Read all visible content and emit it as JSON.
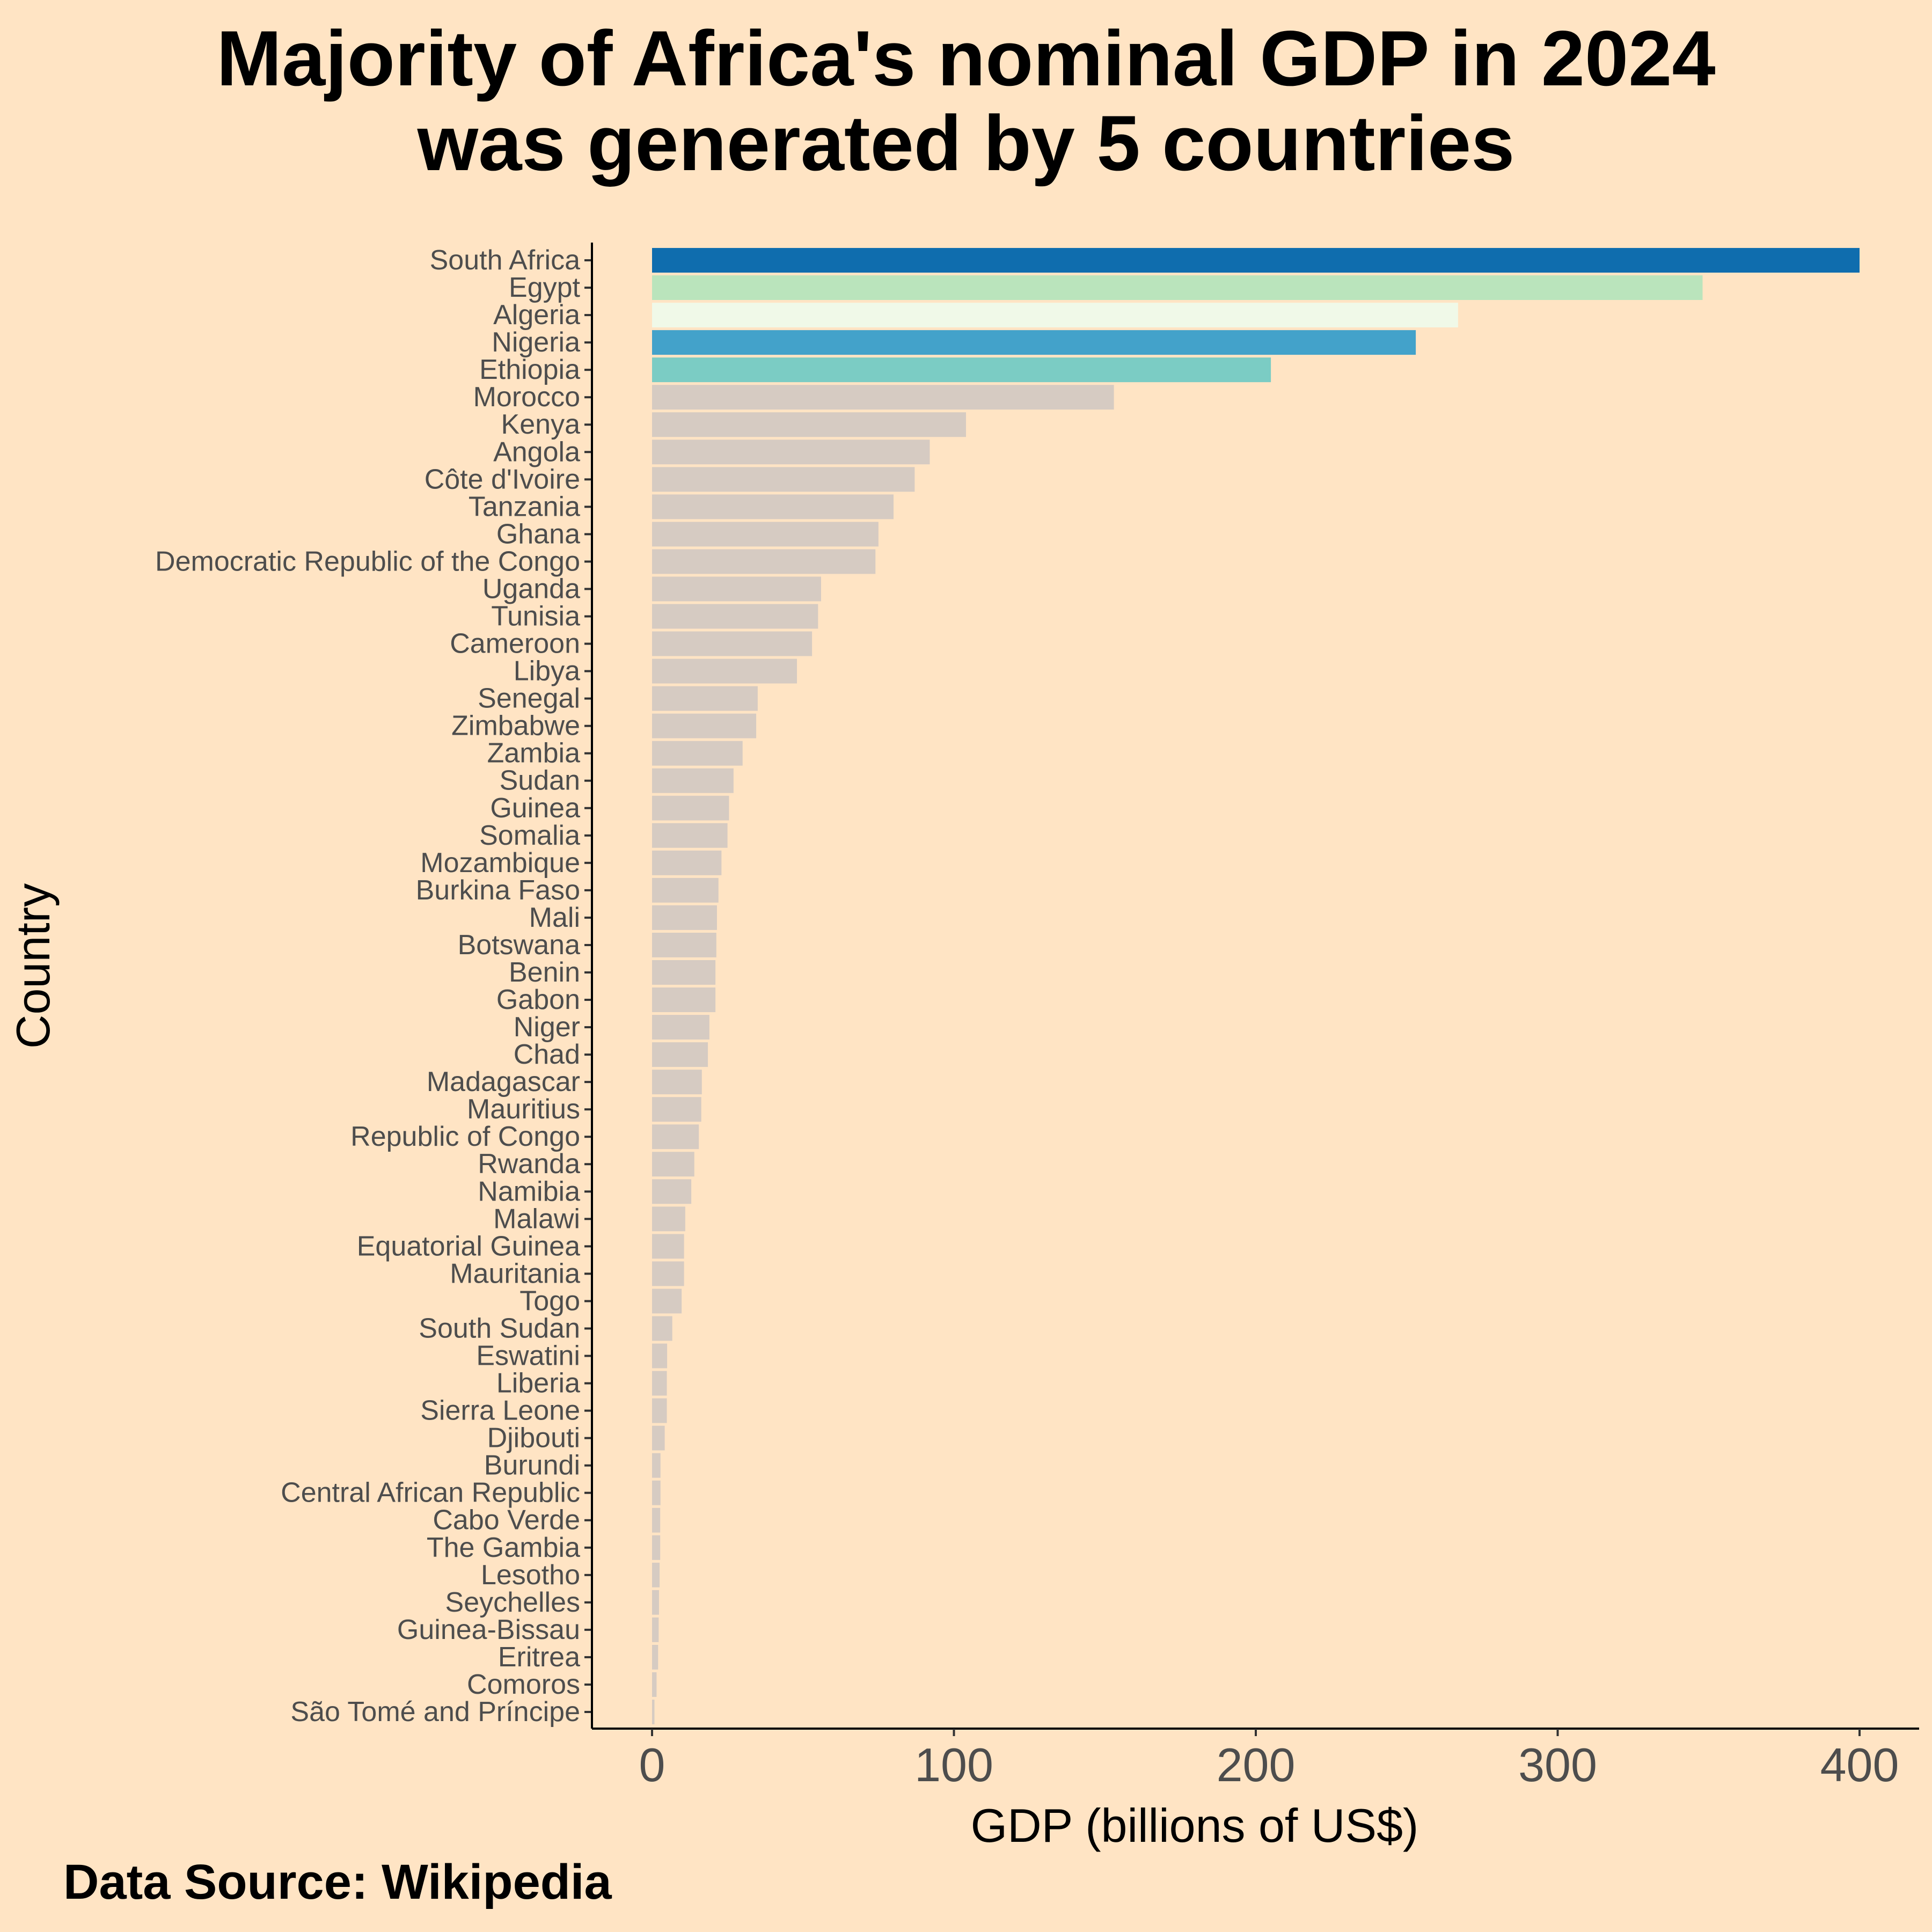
{
  "chart_data": {
    "type": "bar",
    "orientation": "horizontal",
    "title_lines": [
      "Majority of Africa's nominal GDP in 2024",
      "was generated by 5 countries"
    ],
    "xlabel": "GDP (billions of US$)",
    "ylabel": "Country",
    "xlim": [
      -20,
      420
    ],
    "xticks": [
      0,
      100,
      200,
      300,
      400
    ],
    "grid": false,
    "caption": "Data Source: Wikipedia",
    "categories": [
      "South Africa",
      "Egypt",
      "Algeria",
      "Nigeria",
      "Ethiopia",
      "Morocco",
      "Kenya",
      "Angola",
      "Côte d'Ivoire",
      "Tanzania",
      "Ghana",
      "Democratic Republic of the Congo",
      "Uganda",
      "Tunisia",
      "Cameroon",
      "Libya",
      "Senegal",
      "Zimbabwe",
      "Zambia",
      "Sudan",
      "Guinea",
      "Somalia",
      "Mozambique",
      "Burkina Faso",
      "Mali",
      "Botswana",
      "Benin",
      "Gabon",
      "Niger",
      "Chad",
      "Madagascar",
      "Mauritius",
      "Republic of Congo",
      "Rwanda",
      "Namibia",
      "Malawi",
      "Equatorial Guinea",
      "Mauritania",
      "Togo",
      "South Sudan",
      "Eswatini",
      "Liberia",
      "Sierra Leone",
      "Djibouti",
      "Burundi",
      "Central African Republic",
      "Cabo Verde",
      "The Gambia",
      "Lesotho",
      "Seychelles",
      "Guinea-Bissau",
      "Eritrea",
      "Comoros",
      "São Tomé and Príncipe"
    ],
    "values": [
      400,
      348,
      267,
      253,
      205,
      153,
      104,
      92,
      87,
      80,
      75,
      74,
      56,
      55,
      53,
      48,
      35,
      34.5,
      30,
      27,
      25.5,
      25,
      23,
      22,
      21.5,
      21.3,
      21,
      21,
      19,
      18.5,
      16.5,
      16.3,
      15.5,
      14,
      13,
      11,
      10.6,
      10.6,
      9.8,
      6.7,
      5,
      4.9,
      4.9,
      4.2,
      2.8,
      2.8,
      2.7,
      2.7,
      2.5,
      2.3,
      2.2,
      2,
      1.5,
      0.8
    ],
    "highlight_colors": {
      "South Africa": "#0F6DAE",
      "Egypt": "#BAE4BC",
      "Algeria": "#F0F9E8",
      "Nigeria": "#43A2CA",
      "Ethiopia": "#7BCCC4"
    },
    "default_bar_color": "#D6CBC2",
    "background_color": "#FFE4C4"
  }
}
